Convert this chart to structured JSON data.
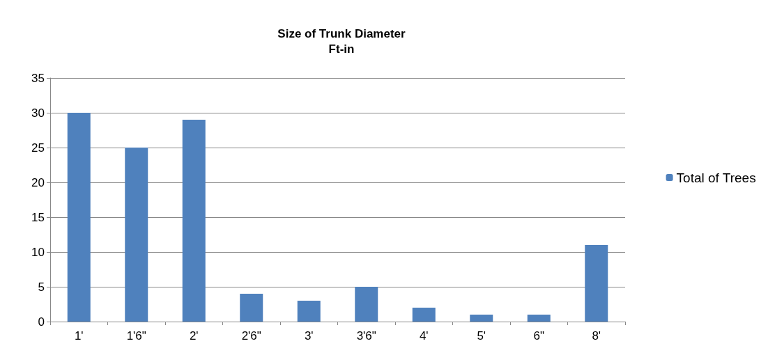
{
  "chart_data": {
    "type": "bar",
    "title": "Size of Trunk Diameter\nFt-in",
    "categories": [
      "1'",
      "1'6\"",
      "2'",
      "2'6\"",
      "3'",
      "3'6\"",
      "4'",
      "5'",
      "6\"",
      "8'"
    ],
    "series": [
      {
        "name": "Total of Trees",
        "color": "#4f81bd",
        "values": [
          30,
          25,
          29,
          4,
          3,
          5,
          2,
          1,
          1,
          11
        ]
      }
    ],
    "ylim": [
      0,
      35
    ],
    "yticks": [
      0,
      5,
      10,
      15,
      20,
      25,
      30,
      35
    ],
    "grid": "y",
    "legend": "right"
  }
}
